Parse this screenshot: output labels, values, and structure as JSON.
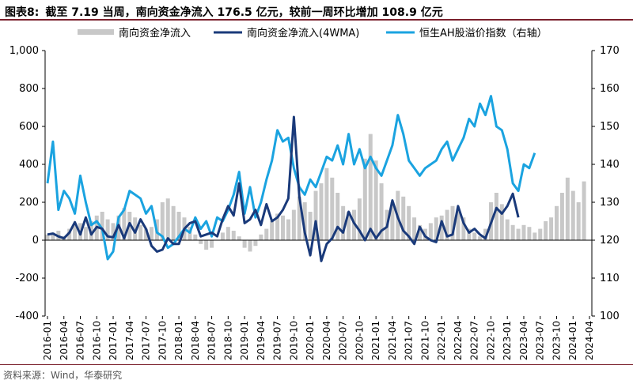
{
  "header": {
    "figure_label": "图表8:",
    "title": "截至 7.19 当周，南向资金净流入 176.5 亿元，较前一周环比增加 108.9 亿元"
  },
  "footer": {
    "source": "资料来源：Wind，华泰研究"
  },
  "colors": {
    "bar": "#c8c8c8",
    "ma": "#1a3a7a",
    "ah": "#1aa3e0",
    "accent": "#7a1f2b"
  },
  "chart_data": {
    "type": "bar+line",
    "title": "截至 7.19 当周，南向资金净流入 176.5 亿元，较前一周环比增加 108.9 亿元",
    "legend_position": "top",
    "left_axis": {
      "ylim": [
        -400,
        1000
      ],
      "ticks": [
        "1,000",
        "800",
        "600",
        "400",
        "200",
        "0",
        "-200",
        "-400"
      ]
    },
    "right_axis": {
      "ylim": [
        100,
        170
      ],
      "ticks": [
        "170",
        "160",
        "150",
        "140",
        "130",
        "120",
        "110",
        "100"
      ]
    },
    "x_tick_labels": [
      "2016-01",
      "2016-04",
      "2016-07",
      "2016-10",
      "2017-01",
      "2017-04",
      "2017-07",
      "2017-10",
      "2018-01",
      "2018-04",
      "2018-07",
      "2018-10",
      "2019-01",
      "2019-04",
      "2019-07",
      "2019-10",
      "2020-01",
      "2020-04",
      "2020-07",
      "2020-10",
      "2021-01",
      "2021-04",
      "2021-07",
      "2021-10",
      "2022-01",
      "2022-04",
      "2022-07",
      "2022-10",
      "2023-01",
      "2023-04",
      "2023-07",
      "2023-10",
      "2024-01",
      "2024-04"
    ],
    "series": [
      {
        "name": "南向资金净流入",
        "type": "bar",
        "axis": "left",
        "points": [
          [
            0,
            30
          ],
          [
            1,
            40
          ],
          [
            2,
            50
          ],
          [
            3,
            20
          ],
          [
            4,
            60
          ],
          [
            5,
            80
          ],
          [
            6,
            90
          ],
          [
            7,
            70
          ],
          [
            8,
            100
          ],
          [
            9,
            130
          ],
          [
            10,
            150
          ],
          [
            11,
            110
          ],
          [
            12,
            90
          ],
          [
            13,
            130
          ],
          [
            14,
            170
          ],
          [
            15,
            150
          ],
          [
            16,
            120
          ],
          [
            17,
            80
          ],
          [
            18,
            60
          ],
          [
            19,
            70
          ],
          [
            20,
            110
          ],
          [
            21,
            200
          ],
          [
            22,
            220
          ],
          [
            23,
            180
          ],
          [
            24,
            150
          ],
          [
            25,
            120
          ],
          [
            26,
            70
          ],
          [
            27,
            30
          ],
          [
            28,
            -20
          ],
          [
            29,
            -50
          ],
          [
            30,
            -40
          ],
          [
            31,
            0
          ],
          [
            32,
            40
          ],
          [
            33,
            70
          ],
          [
            34,
            50
          ],
          [
            35,
            20
          ],
          [
            36,
            -40
          ],
          [
            37,
            -60
          ],
          [
            38,
            -30
          ],
          [
            39,
            30
          ],
          [
            40,
            60
          ],
          [
            41,
            100
          ],
          [
            42,
            140
          ],
          [
            43,
            130
          ],
          [
            44,
            110
          ],
          [
            45,
            160
          ],
          [
            46,
            230
          ],
          [
            47,
            200
          ],
          [
            48,
            150
          ],
          [
            49,
            260
          ],
          [
            50,
            300
          ],
          [
            51,
            380
          ],
          [
            52,
            330
          ],
          [
            53,
            250
          ],
          [
            54,
            180
          ],
          [
            55,
            150
          ],
          [
            56,
            160
          ],
          [
            57,
            220
          ],
          [
            58,
            430
          ],
          [
            59,
            560
          ],
          [
            60,
            420
          ],
          [
            61,
            300
          ],
          [
            62,
            160
          ],
          [
            63,
            200
          ],
          [
            64,
            260
          ],
          [
            65,
            230
          ],
          [
            66,
            180
          ],
          [
            67,
            120
          ],
          [
            68,
            80
          ],
          [
            69,
            60
          ],
          [
            70,
            90
          ],
          [
            71,
            120
          ],
          [
            72,
            130
          ],
          [
            73,
            160
          ],
          [
            74,
            180
          ],
          [
            75,
            150
          ],
          [
            76,
            120
          ],
          [
            77,
            60
          ],
          [
            78,
            40
          ],
          [
            79,
            20
          ],
          [
            80,
            60
          ],
          [
            81,
            200
          ],
          [
            82,
            250
          ],
          [
            83,
            190
          ],
          [
            84,
            110
          ],
          [
            85,
            80
          ],
          [
            86,
            60
          ],
          [
            87,
            80
          ],
          [
            88,
            70
          ],
          [
            89,
            40
          ],
          [
            90,
            60
          ],
          [
            91,
            100
          ],
          [
            92,
            120
          ],
          [
            93,
            180
          ],
          [
            94,
            250
          ],
          [
            95,
            330
          ],
          [
            96,
            260
          ],
          [
            97,
            200
          ],
          [
            98,
            310
          ]
        ]
      },
      {
        "name": "南向资金净流入(4WMA)",
        "type": "line",
        "axis": "left",
        "points": [
          [
            0,
            30
          ],
          [
            1,
            35
          ],
          [
            2,
            20
          ],
          [
            3,
            10
          ],
          [
            4,
            40
          ],
          [
            5,
            95
          ],
          [
            6,
            30
          ],
          [
            7,
            120
          ],
          [
            8,
            30
          ],
          [
            9,
            70
          ],
          [
            10,
            60
          ],
          [
            11,
            20
          ],
          [
            12,
            15
          ],
          [
            13,
            80
          ],
          [
            14,
            10
          ],
          [
            15,
            90
          ],
          [
            16,
            40
          ],
          [
            17,
            110
          ],
          [
            18,
            60
          ],
          [
            19,
            -30
          ],
          [
            20,
            -60
          ],
          [
            21,
            -50
          ],
          [
            22,
            10
          ],
          [
            23,
            -20
          ],
          [
            24,
            -20
          ],
          [
            25,
            60
          ],
          [
            26,
            90
          ],
          [
            27,
            100
          ],
          [
            28,
            20
          ],
          [
            29,
            30
          ],
          [
            30,
            40
          ],
          [
            31,
            20
          ],
          [
            32,
            110
          ],
          [
            33,
            180
          ],
          [
            34,
            130
          ],
          [
            35,
            300
          ],
          [
            36,
            90
          ],
          [
            37,
            110
          ],
          [
            38,
            160
          ],
          [
            39,
            80
          ],
          [
            40,
            190
          ],
          [
            41,
            100
          ],
          [
            42,
            120
          ],
          [
            43,
            160
          ],
          [
            44,
            220
          ],
          [
            45,
            650
          ],
          [
            46,
            230
          ],
          [
            47,
            40
          ],
          [
            48,
            -80
          ],
          [
            49,
            100
          ],
          [
            50,
            -110
          ],
          [
            51,
            -20
          ],
          [
            52,
            10
          ],
          [
            53,
            70
          ],
          [
            54,
            40
          ],
          [
            55,
            150
          ],
          [
            56,
            90
          ],
          [
            57,
            50
          ],
          [
            58,
            0
          ],
          [
            59,
            60
          ],
          [
            60,
            10
          ],
          [
            61,
            50
          ],
          [
            62,
            70
          ],
          [
            63,
            210
          ],
          [
            64,
            120
          ],
          [
            65,
            50
          ],
          [
            66,
            20
          ],
          [
            67,
            -20
          ],
          [
            68,
            70
          ],
          [
            69,
            20
          ],
          [
            70,
            0
          ],
          [
            71,
            -10
          ],
          [
            72,
            100
          ],
          [
            73,
            20
          ],
          [
            74,
            30
          ],
          [
            75,
            180
          ],
          [
            76,
            90
          ],
          [
            77,
            40
          ],
          [
            78,
            60
          ],
          [
            79,
            30
          ],
          [
            80,
            10
          ],
          [
            81,
            90
          ],
          [
            82,
            170
          ],
          [
            83,
            140
          ],
          [
            84,
            180
          ],
          [
            85,
            245
          ],
          [
            86,
            120
          ]
        ]
      },
      {
        "name": "恒生AH股溢价指数（右轴）",
        "type": "line",
        "axis": "right",
        "points": [
          [
            0,
            135
          ],
          [
            1,
            146
          ],
          [
            2,
            128
          ],
          [
            3,
            133
          ],
          [
            4,
            131
          ],
          [
            5,
            127
          ],
          [
            6,
            137
          ],
          [
            7,
            130
          ],
          [
            8,
            124
          ],
          [
            9,
            125
          ],
          [
            10,
            123
          ],
          [
            11,
            115
          ],
          [
            12,
            117
          ],
          [
            13,
            126
          ],
          [
            14,
            128
          ],
          [
            15,
            133
          ],
          [
            16,
            132
          ],
          [
            17,
            131
          ],
          [
            18,
            127
          ],
          [
            19,
            129
          ],
          [
            20,
            122
          ],
          [
            21,
            121
          ],
          [
            22,
            118
          ],
          [
            23,
            119
          ],
          [
            24,
            121
          ],
          [
            25,
            123
          ],
          [
            26,
            122
          ],
          [
            27,
            126
          ],
          [
            28,
            123
          ],
          [
            29,
            125
          ],
          [
            30,
            121
          ],
          [
            31,
            126
          ],
          [
            32,
            125
          ],
          [
            33,
            128
          ],
          [
            34,
            132
          ],
          [
            35,
            138
          ],
          [
            36,
            127
          ],
          [
            37,
            134
          ],
          [
            38,
            126
          ],
          [
            39,
            130
          ],
          [
            40,
            136
          ],
          [
            41,
            141
          ],
          [
            42,
            149
          ],
          [
            43,
            146
          ],
          [
            44,
            147
          ],
          [
            45,
            139
          ],
          [
            46,
            134
          ],
          [
            47,
            132
          ],
          [
            48,
            136
          ],
          [
            49,
            134
          ],
          [
            50,
            138
          ],
          [
            51,
            142
          ],
          [
            52,
            141
          ],
          [
            53,
            145
          ],
          [
            54,
            140
          ],
          [
            55,
            148
          ],
          [
            56,
            140
          ],
          [
            57,
            144
          ],
          [
            58,
            139
          ],
          [
            59,
            142
          ],
          [
            60,
            139
          ],
          [
            61,
            137
          ],
          [
            62,
            141
          ],
          [
            63,
            145
          ],
          [
            64,
            153
          ],
          [
            65,
            148
          ],
          [
            66,
            141
          ],
          [
            67,
            139
          ],
          [
            68,
            137
          ],
          [
            69,
            139
          ],
          [
            70,
            140
          ],
          [
            71,
            141
          ],
          [
            72,
            144
          ],
          [
            73,
            146
          ],
          [
            74,
            141
          ],
          [
            75,
            144
          ],
          [
            76,
            147
          ],
          [
            77,
            152
          ],
          [
            78,
            150
          ],
          [
            79,
            156
          ],
          [
            80,
            153
          ],
          [
            81,
            158
          ],
          [
            82,
            150
          ],
          [
            83,
            149
          ],
          [
            84,
            144
          ],
          [
            85,
            135
          ],
          [
            86,
            133
          ],
          [
            87,
            140
          ],
          [
            88,
            139
          ],
          [
            89,
            143
          ]
        ]
      }
    ]
  }
}
